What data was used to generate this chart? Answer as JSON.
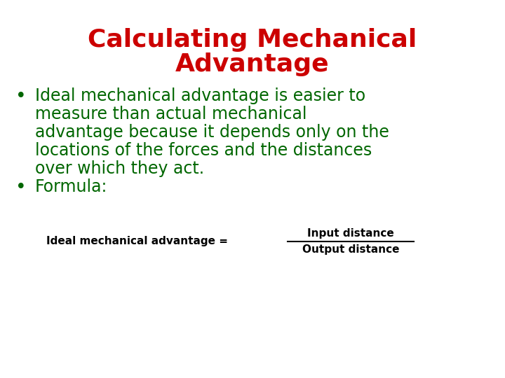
{
  "title_line1": "Calculating Mechanical",
  "title_line2": "Advantage",
  "title_color": "#cc0000",
  "title_fontsize": 26,
  "title_fontweight": "bold",
  "bullet1_line1": "Ideal mechanical advantage is easier to",
  "bullet1_line2": "measure than actual mechanical",
  "bullet1_line3": "advantage because it depends only on the",
  "bullet1_line4": "locations of the forces and the distances",
  "bullet1_line5": "over which they act.",
  "bullet2": "Formula:",
  "bullet_color": "#006600",
  "bullet_fontsize": 17,
  "formula_label": "Ideal mechanical advantage = ",
  "formula_numerator": "Input distance",
  "formula_denominator": "Output distance",
  "formula_color": "#000000",
  "formula_fontsize": 11,
  "background_color": "#ffffff"
}
